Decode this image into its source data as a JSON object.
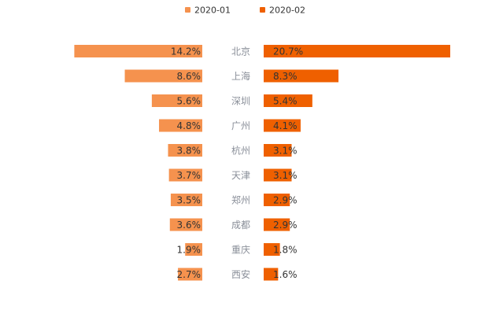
{
  "chart_data": {
    "type": "bar",
    "orientation": "horizontal-butterfly",
    "categories": [
      "北京",
      "上海",
      "深圳",
      "广州",
      "杭州",
      "天津",
      "郑州",
      "成都",
      "重庆",
      "西安"
    ],
    "series": [
      {
        "name": "2020-01",
        "color": "#f5924e",
        "values": [
          14.2,
          8.6,
          5.6,
          4.8,
          3.8,
          3.7,
          3.5,
          3.6,
          1.9,
          2.7
        ],
        "labels": [
          "14.2%",
          "8.6%",
          "5.6%",
          "4.8%",
          "3.8%",
          "3.7%",
          "3.5%",
          "3.6%",
          "1.9%",
          "2.7%"
        ]
      },
      {
        "name": "2020-02",
        "color": "#ef6000",
        "values": [
          20.7,
          8.3,
          5.4,
          4.1,
          3.1,
          3.1,
          2.9,
          2.9,
          1.8,
          1.6
        ],
        "labels": [
          "20.7%",
          "8.3%",
          "5.4%",
          "4.1%",
          "3.1%",
          "3.1%",
          "2.9%",
          "2.9%",
          "1.8%",
          "1.6%"
        ]
      }
    ],
    "title": "",
    "xlabel": "",
    "ylabel": "",
    "xlim": [
      0,
      21
    ],
    "grid": false,
    "legend_position": "top-center"
  }
}
